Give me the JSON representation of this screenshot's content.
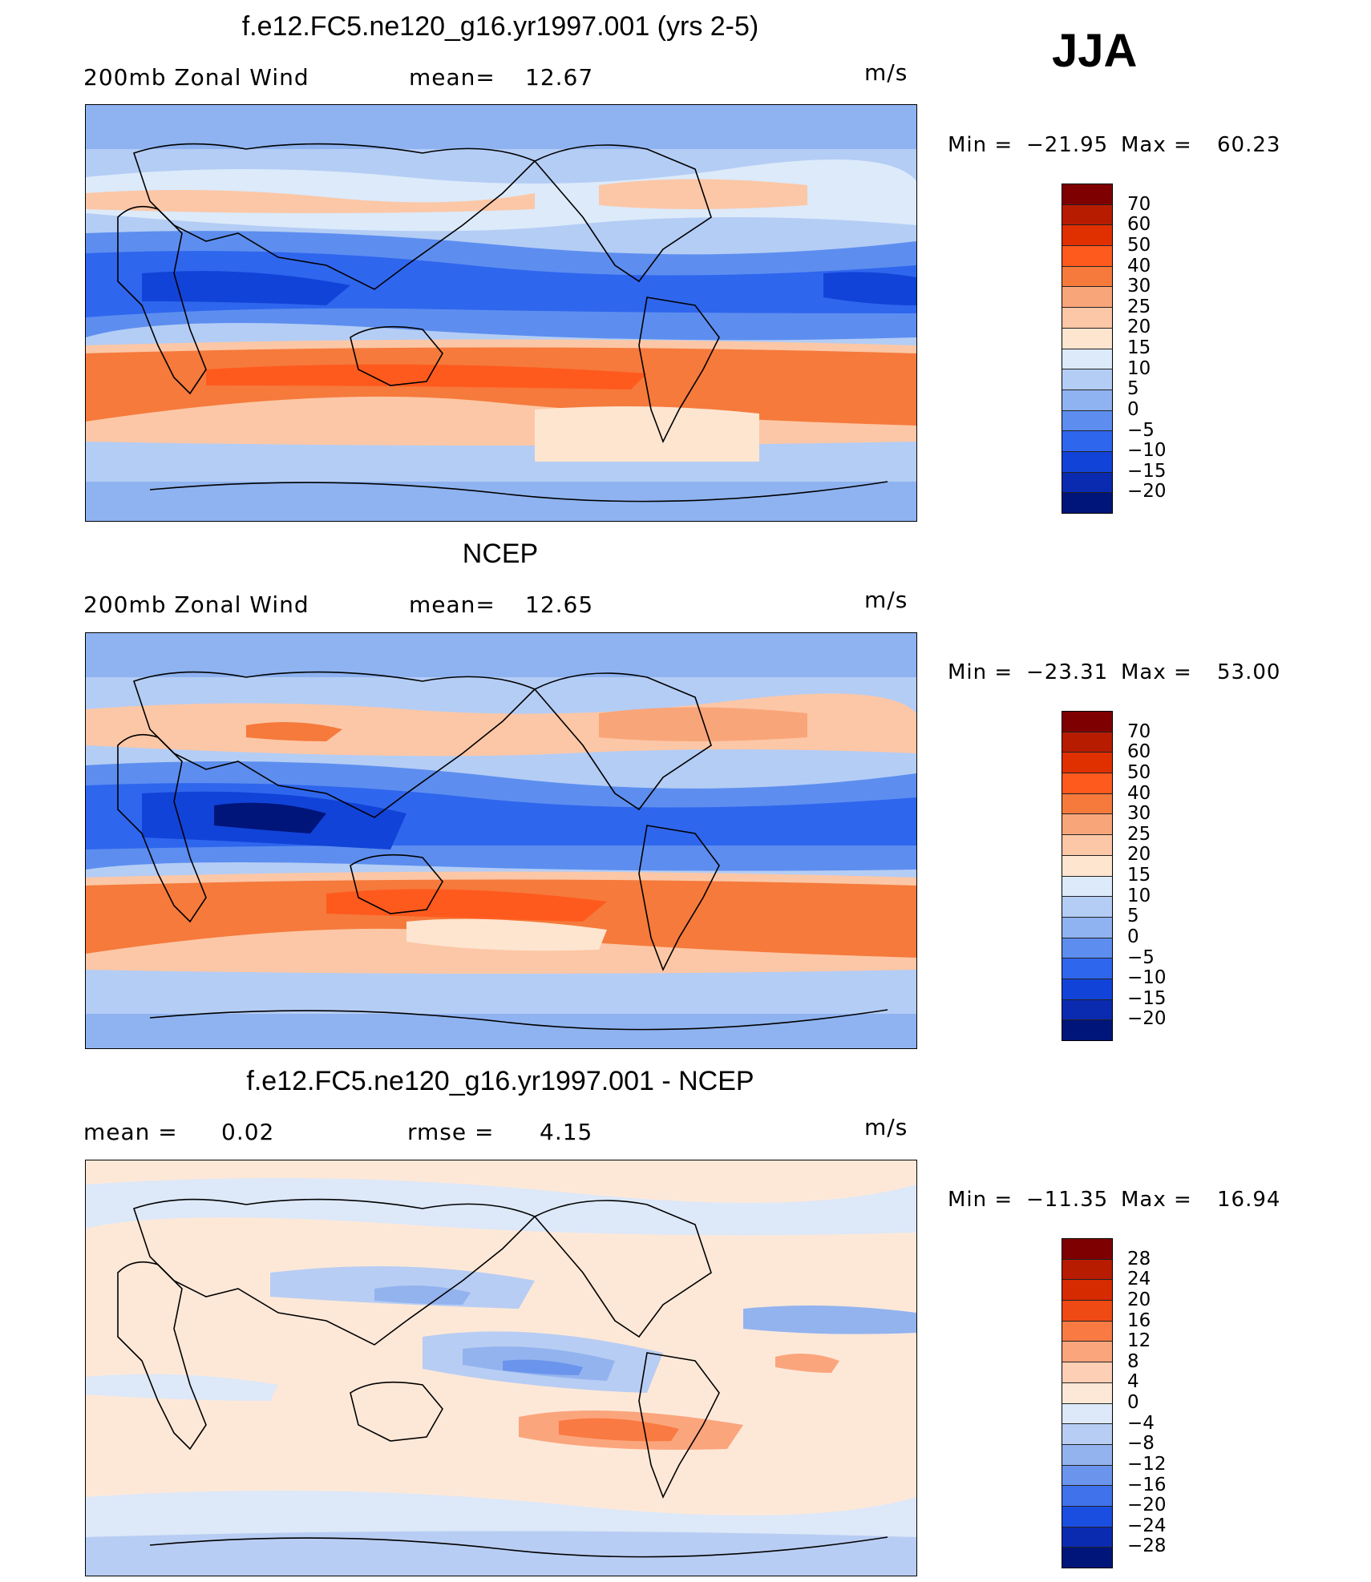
{
  "season": "JJA",
  "units": "m/s",
  "panels": [
    {
      "title": "f.e12.FC5.ne120_g16.yr1997.001 (yrs 2-5)",
      "left_label": "200mb  Zonal  Wind",
      "mid_label": "mean=",
      "mid_value": "12.67",
      "units": "m/s",
      "min_label": "Min  =",
      "min_value": "−21.95",
      "max_label": "Max  =",
      "max_value": "60.23",
      "levels": [
        "70",
        "60",
        "50",
        "40",
        "30",
        "25",
        "20",
        "15",
        "10",
        "5",
        "0",
        "−5",
        "−10",
        "−15",
        "−20"
      ],
      "colors": [
        "#7f0000",
        "#b71c00",
        "#e03000",
        "#ff5a1e",
        "#f57a3c",
        "#f9a57a",
        "#fcc7a6",
        "#fde5d0",
        "#dceafa",
        "#b4cdf5",
        "#8fb3f0",
        "#5d8eef",
        "#2f66ee",
        "#1243d8",
        "#0a2bb0",
        "#00157a"
      ]
    },
    {
      "title": "NCEP",
      "left_label": "200mb  Zonal  Wind",
      "mid_label": "mean=",
      "mid_value": "12.65",
      "units": "m/s",
      "min_label": "Min  =",
      "min_value": "−23.31",
      "max_label": "Max  =",
      "max_value": "53.00",
      "levels": [
        "70",
        "60",
        "50",
        "40",
        "30",
        "25",
        "20",
        "15",
        "10",
        "5",
        "0",
        "−5",
        "−10",
        "−15",
        "−20"
      ],
      "colors": [
        "#7f0000",
        "#b71c00",
        "#e03000",
        "#ff5a1e",
        "#f57a3c",
        "#f9a57a",
        "#fcc7a6",
        "#fde5d0",
        "#dceafa",
        "#b4cdf5",
        "#8fb3f0",
        "#5d8eef",
        "#2f66ee",
        "#1243d8",
        "#0a2bb0",
        "#00157a"
      ]
    },
    {
      "title": "f.e12.FC5.ne120_g16.yr1997.001 - NCEP",
      "left_label": "mean  =",
      "left_value": "0.02",
      "mid_label": "rmse  =",
      "mid_value": "4.15",
      "units": "m/s",
      "min_label": "Min  =",
      "min_value": "−11.35",
      "max_label": "Max  =",
      "max_value": "16.94",
      "levels": [
        "28",
        "24",
        "20",
        "16",
        "12",
        "8",
        "4",
        "0",
        "−4",
        "−8",
        "−12",
        "−16",
        "−20",
        "−24",
        "−28"
      ],
      "colors": [
        "#7f0000",
        "#b71c00",
        "#d62a00",
        "#f04a14",
        "#f97a42",
        "#fba57d",
        "#fdcfb4",
        "#fde8d8",
        "#dde8f8",
        "#b8cdf3",
        "#93b3ef",
        "#6b95ec",
        "#3f72eb",
        "#1a4ee0",
        "#0a2bb0",
        "#00157a"
      ]
    }
  ]
}
